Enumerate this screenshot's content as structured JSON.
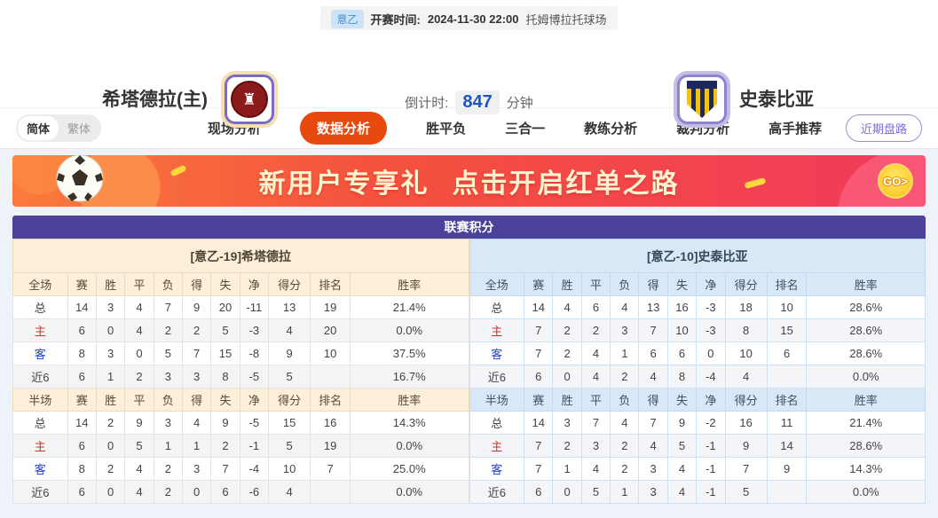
{
  "top_bar": {
    "league_badge": "意乙",
    "kickoff_label": "开赛时间:",
    "kickoff_time": "2024-11-30 22:00",
    "venue": "托姆博拉托球场"
  },
  "match_header": {
    "home_team": "希塔德拉(主)",
    "away_team": "史泰比亚",
    "countdown_label": "倒计时:",
    "countdown_value": "847",
    "countdown_unit": "分钟"
  },
  "nav": {
    "lang": [
      {
        "label": "简体",
        "active": true
      },
      {
        "label": "繁体",
        "active": false
      }
    ],
    "tabs": [
      {
        "label": "现场分析",
        "active": false
      },
      {
        "label": "数据分析",
        "active": true
      },
      {
        "label": "胜平负",
        "active": false
      },
      {
        "label": "三合一",
        "active": false
      },
      {
        "label": "教练分析",
        "active": false
      },
      {
        "label": "裁判分析",
        "active": false
      },
      {
        "label": "高手推荐",
        "active": false
      }
    ],
    "recent_trends_button": "近期盘路"
  },
  "banner": {
    "headline": "新用户专享礼",
    "cta": "点击开启红单之路",
    "go_label": "GO>"
  },
  "standings": {
    "title": "联赛积分",
    "columns": [
      "赛",
      "胜",
      "平",
      "负",
      "得",
      "失",
      "净",
      "得分",
      "排名",
      "胜率"
    ],
    "section_labels": {
      "full": "全场",
      "half": "半场"
    },
    "colors": {
      "header_purple": "#4b4399",
      "home_label": "#d93025",
      "away_label": "#2440cf",
      "active_tab": "#e8490e"
    },
    "left": {
      "team_header": "[意乙-19]希塔德拉",
      "full": [
        [
          "总",
          "14",
          "3",
          "4",
          "7",
          "9",
          "20",
          "-11",
          "13",
          "19",
          "21.4%"
        ],
        [
          "主",
          "6",
          "0",
          "4",
          "2",
          "2",
          "5",
          "-3",
          "4",
          "20",
          "0.0%"
        ],
        [
          "客",
          "8",
          "3",
          "0",
          "5",
          "7",
          "15",
          "-8",
          "9",
          "10",
          "37.5%"
        ],
        [
          "近6",
          "6",
          "1",
          "2",
          "3",
          "3",
          "8",
          "-5",
          "5",
          "",
          "16.7%"
        ]
      ],
      "half": [
        [
          "总",
          "14",
          "2",
          "9",
          "3",
          "4",
          "9",
          "-5",
          "15",
          "16",
          "14.3%"
        ],
        [
          "主",
          "6",
          "0",
          "5",
          "1",
          "1",
          "2",
          "-1",
          "5",
          "19",
          "0.0%"
        ],
        [
          "客",
          "8",
          "2",
          "4",
          "2",
          "3",
          "7",
          "-4",
          "10",
          "7",
          "25.0%"
        ],
        [
          "近6",
          "6",
          "0",
          "4",
          "2",
          "0",
          "6",
          "-6",
          "4",
          "",
          "0.0%"
        ]
      ]
    },
    "right": {
      "team_header": "[意乙-10]史泰比亚",
      "full": [
        [
          "总",
          "14",
          "4",
          "6",
          "4",
          "13",
          "16",
          "-3",
          "18",
          "10",
          "28.6%"
        ],
        [
          "主",
          "7",
          "2",
          "2",
          "3",
          "7",
          "10",
          "-3",
          "8",
          "15",
          "28.6%"
        ],
        [
          "客",
          "7",
          "2",
          "4",
          "1",
          "6",
          "6",
          "0",
          "10",
          "6",
          "28.6%"
        ],
        [
          "近6",
          "6",
          "0",
          "4",
          "2",
          "4",
          "8",
          "-4",
          "4",
          "",
          "0.0%"
        ]
      ],
      "half": [
        [
          "总",
          "14",
          "3",
          "7",
          "4",
          "7",
          "9",
          "-2",
          "16",
          "11",
          "21.4%"
        ],
        [
          "主",
          "7",
          "2",
          "3",
          "2",
          "4",
          "5",
          "-1",
          "9",
          "14",
          "28.6%"
        ],
        [
          "客",
          "7",
          "1",
          "4",
          "2",
          "3",
          "4",
          "-1",
          "7",
          "9",
          "14.3%"
        ],
        [
          "近6",
          "6",
          "0",
          "5",
          "1",
          "3",
          "4",
          "-1",
          "5",
          "",
          "0.0%"
        ]
      ]
    }
  }
}
